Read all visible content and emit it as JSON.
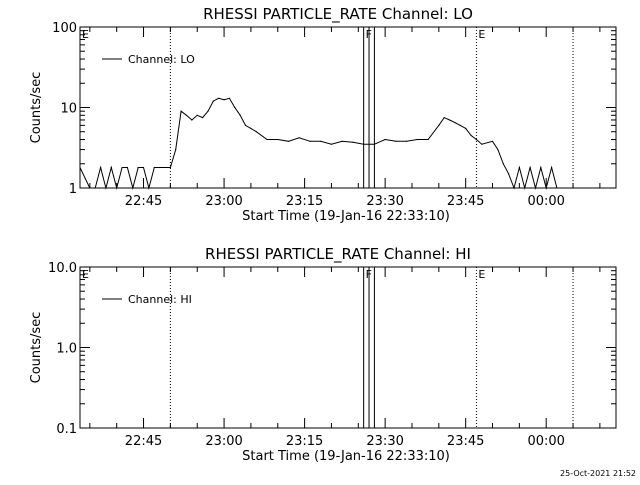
{
  "footer": {
    "timestamp": "25-Oct-2021 21:52"
  },
  "chart_data": [
    {
      "type": "line",
      "title": "RHESSI PARTICLE_RATE Channel: LO",
      "xlabel": "Start Time (19-Jan-16 22:33:10)",
      "ylabel": "Counts/sec",
      "yscale": "log",
      "ylim": [
        1,
        100
      ],
      "xlim": [
        "22:33:10",
        "00:13:00"
      ],
      "xticks": [
        "22:45",
        "23:00",
        "23:15",
        "23:30",
        "23:45",
        "00:00"
      ],
      "yticks": [
        "1",
        "10",
        "100"
      ],
      "grid": false,
      "legend": {
        "position": "top-left",
        "entries": [
          "Channel: LO"
        ]
      },
      "markers": {
        "dotted": [
          "22:50",
          "23:47",
          "00:05"
        ],
        "solid": [
          "23:26",
          "23:27",
          "23:28"
        ],
        "labels": [
          {
            "text": "E",
            "at": "22:33"
          },
          {
            "text": "F",
            "at": "23:26"
          },
          {
            "text": "E",
            "at": "23:47"
          }
        ]
      },
      "series": [
        {
          "name": "Channel: LO",
          "x": [
            "22:33:10",
            "22:35:00",
            "22:36:00",
            "22:37:00",
            "22:38:00",
            "22:39:00",
            "22:40:00",
            "22:41:00",
            "22:42:00",
            "22:43:00",
            "22:44:00",
            "22:45:00",
            "22:46:00",
            "22:47:00",
            "22:48:00",
            "22:49:00",
            "22:50:00",
            "22:51:00",
            "22:52:00",
            "22:53:00",
            "22:54:00",
            "22:55:00",
            "22:56:00",
            "22:57:00",
            "22:58:00",
            "22:59:00",
            "23:00:00",
            "23:01:00",
            "23:02:00",
            "23:03:00",
            "23:04:00",
            "23:05:00",
            "23:06:00",
            "23:08:00",
            "23:10:00",
            "23:12:00",
            "23:14:00",
            "23:16:00",
            "23:18:00",
            "23:20:00",
            "23:22:00",
            "23:24:00",
            "23:26:00",
            "23:28:00",
            "23:30:00",
            "23:32:00",
            "23:34:00",
            "23:36:00",
            "23:38:00",
            "23:40:00",
            "23:41:00",
            "23:42:00",
            "23:43:00",
            "23:44:00",
            "23:45:00",
            "23:46:00",
            "23:47:00",
            "23:48:00",
            "23:50:00",
            "23:51:00",
            "23:52:00",
            "23:53:00",
            "23:54:00",
            "23:55:00",
            "23:56:00",
            "23:57:00",
            "23:58:00",
            "23:59:00",
            "00:00:00",
            "00:01:00",
            "00:02:00"
          ],
          "y": [
            1.8,
            1,
            1,
            1.8,
            1,
            1.8,
            1,
            1.8,
            1.8,
            1,
            1.8,
            1.8,
            1,
            1.8,
            1.8,
            1.8,
            1.8,
            3,
            9,
            8,
            7,
            8,
            7.5,
            9,
            12,
            13,
            12.5,
            13,
            10,
            8,
            6,
            5.5,
            5,
            4,
            4,
            3.8,
            4.2,
            3.8,
            3.8,
            3.5,
            3.8,
            3.7,
            3.5,
            3.5,
            4,
            3.8,
            3.8,
            4,
            4,
            6,
            7.5,
            7,
            6.5,
            6,
            5.5,
            4.5,
            4,
            3.5,
            3.8,
            3,
            2,
            1.5,
            1,
            1.8,
            1,
            1.8,
            1,
            1.8,
            1,
            1.8,
            1
          ]
        }
      ]
    },
    {
      "type": "line",
      "title": "RHESSI PARTICLE_RATE Channel: HI",
      "xlabel": "Start Time (19-Jan-16 22:33:10)",
      "ylabel": "Counts/sec",
      "yscale": "log",
      "ylim": [
        0.1,
        10
      ],
      "xlim": [
        "22:33:10",
        "00:13:00"
      ],
      "xticks": [
        "22:45",
        "23:00",
        "23:15",
        "23:30",
        "23:45",
        "00:00"
      ],
      "yticks": [
        "0.1",
        "1.0",
        "10.0"
      ],
      "grid": false,
      "legend": {
        "position": "top-left",
        "entries": [
          "Channel: HI"
        ]
      },
      "markers": {
        "dotted": [
          "22:50",
          "23:47",
          "00:05"
        ],
        "solid": [
          "23:26",
          "23:27",
          "23:28"
        ],
        "labels": [
          {
            "text": "E",
            "at": "22:33"
          },
          {
            "text": "F",
            "at": "23:26"
          },
          {
            "text": "E",
            "at": "23:47"
          }
        ]
      },
      "series": [
        {
          "name": "Channel: HI",
          "x": [],
          "y": []
        }
      ]
    }
  ]
}
